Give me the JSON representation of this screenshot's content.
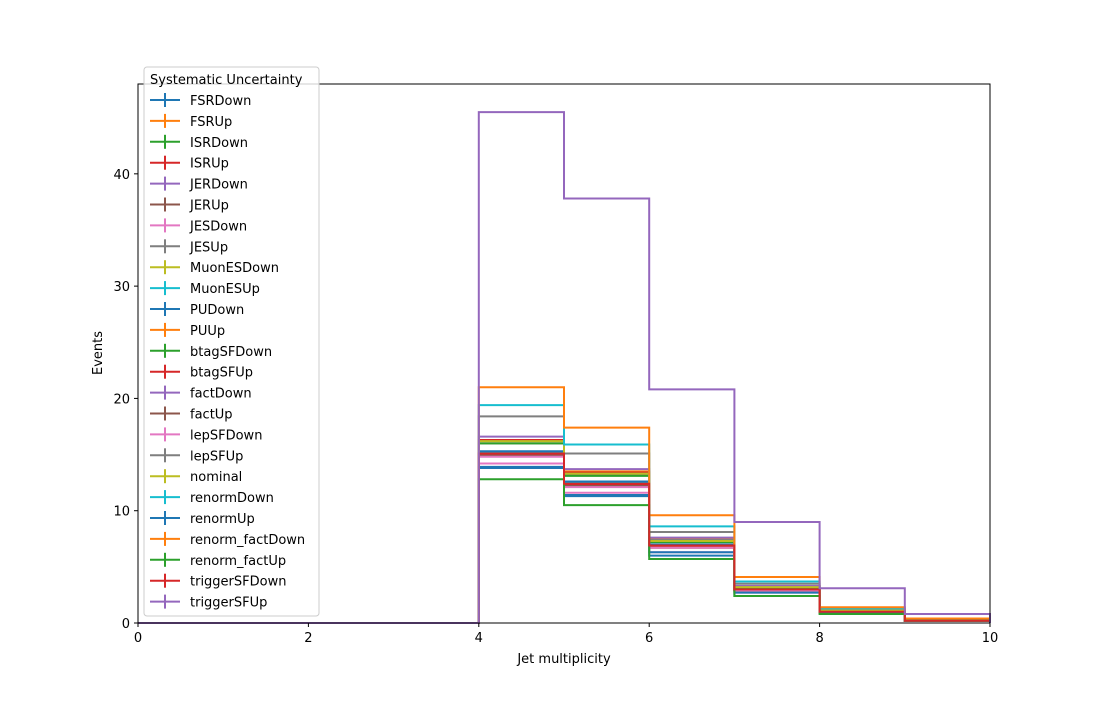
{
  "chart_data": {
    "type": "line",
    "drawstyle": "steps-post",
    "xlabel": "Jet multiplicity",
    "ylabel": "Events",
    "xlim": [
      0,
      10
    ],
    "ylim": [
      0,
      48
    ],
    "xticks": [
      0,
      2,
      4,
      6,
      8,
      10
    ],
    "yticks": [
      0,
      10,
      20,
      30,
      40
    ],
    "grid": false,
    "legend": {
      "title": "Systematic Uncertainty",
      "placement": "upper-left"
    },
    "bin_edges": [
      0,
      1,
      2,
      3,
      4,
      5,
      6,
      7,
      8,
      9,
      10
    ],
    "series": [
      {
        "name": "FSRDown",
        "color": "#1f77b4",
        "values": [
          0,
          0,
          0,
          0,
          13.8,
          11.3,
          6.0,
          2.4,
          0.9,
          0.2
        ]
      },
      {
        "name": "FSRUp",
        "color": "#ff7f0e",
        "values": [
          0,
          0,
          0,
          0,
          16.0,
          13.5,
          7.5,
          3.3,
          1.2,
          0.3
        ]
      },
      {
        "name": "ISRDown",
        "color": "#2ca02c",
        "values": [
          0,
          0,
          0,
          0,
          15.0,
          12.4,
          6.9,
          3.0,
          1.0,
          0.2
        ]
      },
      {
        "name": "ISRUp",
        "color": "#d62728",
        "values": [
          0,
          0,
          0,
          0,
          16.3,
          13.4,
          7.3,
          3.2,
          1.1,
          0.3
        ]
      },
      {
        "name": "JERDown",
        "color": "#9467bd",
        "values": [
          0,
          0,
          0,
          0,
          15.1,
          12.4,
          6.8,
          3.0,
          1.0,
          0.2
        ]
      },
      {
        "name": "JERUp",
        "color": "#8c564b",
        "values": [
          0,
          0,
          0,
          0,
          15.2,
          12.3,
          6.8,
          2.9,
          1.0,
          0.2
        ]
      },
      {
        "name": "JESDown",
        "color": "#e377c2",
        "values": [
          0,
          0,
          0,
          0,
          14.2,
          11.6,
          6.3,
          2.7,
          0.9,
          0.2
        ]
      },
      {
        "name": "JESUp",
        "color": "#7f7f7f",
        "values": [
          0,
          0,
          0,
          0,
          16.0,
          13.2,
          7.4,
          3.3,
          1.1,
          0.3
        ]
      },
      {
        "name": "MuonESDown",
        "color": "#bcbd22",
        "values": [
          0,
          0,
          0,
          0,
          15.2,
          12.5,
          6.9,
          3.0,
          1.0,
          0.2
        ]
      },
      {
        "name": "MuonESUp",
        "color": "#17becf",
        "values": [
          0,
          0,
          0,
          0,
          15.2,
          12.5,
          6.9,
          3.0,
          1.0,
          0.2
        ]
      },
      {
        "name": "PUDown",
        "color": "#1f77b4",
        "values": [
          0,
          0,
          0,
          0,
          15.3,
          12.6,
          7.0,
          3.0,
          1.0,
          0.2
        ]
      },
      {
        "name": "PUUp",
        "color": "#ff7f0e",
        "values": [
          0,
          0,
          0,
          0,
          15.0,
          12.3,
          6.8,
          2.9,
          1.0,
          0.2
        ]
      },
      {
        "name": "btagSFDown",
        "color": "#2ca02c",
        "values": [
          0,
          0,
          0,
          0,
          16.0,
          13.1,
          7.2,
          3.1,
          1.0,
          0.2
        ]
      },
      {
        "name": "btagSFUp",
        "color": "#d62728",
        "values": [
          0,
          0,
          0,
          0,
          15.0,
          12.3,
          6.8,
          2.9,
          1.0,
          0.2
        ]
      },
      {
        "name": "factDown",
        "color": "#9467bd",
        "values": [
          0,
          0,
          0,
          0,
          16.6,
          13.7,
          7.6,
          3.3,
          1.1,
          0.3
        ]
      },
      {
        "name": "factUp",
        "color": "#8c564b",
        "values": [
          0,
          0,
          0,
          0,
          14.9,
          12.2,
          6.7,
          2.9,
          1.0,
          0.2
        ]
      },
      {
        "name": "lepSFDown",
        "color": "#e377c2",
        "values": [
          0,
          0,
          0,
          0,
          14.8,
          12.1,
          6.7,
          2.9,
          1.0,
          0.2
        ]
      },
      {
        "name": "lepSFUp",
        "color": "#7f7f7f",
        "values": [
          0,
          0,
          0,
          0,
          18.4,
          15.1,
          8.1,
          3.5,
          1.2,
          0.3
        ]
      },
      {
        "name": "nominal",
        "color": "#bcbd22",
        "values": [
          0,
          0,
          0,
          0,
          16.2,
          13.3,
          7.3,
          3.2,
          1.1,
          0.3
        ]
      },
      {
        "name": "renormDown",
        "color": "#17becf",
        "values": [
          0,
          0,
          0,
          0,
          19.4,
          15.9,
          8.6,
          3.7,
          1.3,
          0.3
        ]
      },
      {
        "name": "renormUp",
        "color": "#1f77b4",
        "values": [
          0,
          0,
          0,
          0,
          13.9,
          11.4,
          6.3,
          2.7,
          0.9,
          0.2
        ]
      },
      {
        "name": "renorm_factDown",
        "color": "#ff7f0e",
        "values": [
          0,
          0,
          0,
          0,
          21.0,
          17.4,
          9.6,
          4.1,
          1.4,
          0.4
        ]
      },
      {
        "name": "renorm_factUp",
        "color": "#2ca02c",
        "values": [
          0,
          0,
          0,
          0,
          12.8,
          10.5,
          5.7,
          2.4,
          0.8,
          0.2
        ]
      },
      {
        "name": "triggerSFDown",
        "color": "#d62728",
        "values": [
          0,
          0,
          0,
          0,
          15.1,
          12.4,
          6.9,
          3.0,
          1.0,
          0.2
        ]
      },
      {
        "name": "triggerSFUp",
        "color": "#9467bd",
        "values": [
          0,
          0,
          0,
          0,
          45.5,
          37.8,
          20.8,
          9.0,
          3.1,
          0.8
        ]
      }
    ]
  }
}
